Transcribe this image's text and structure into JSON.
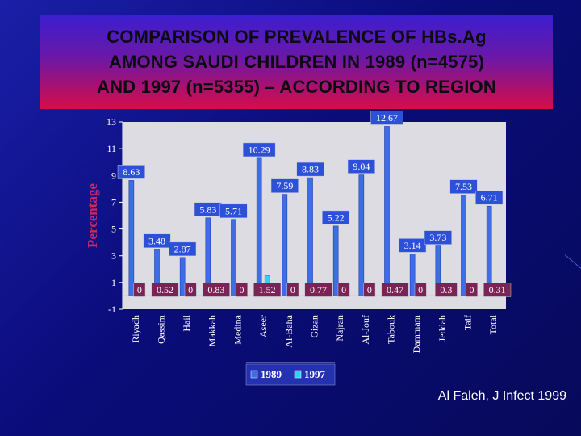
{
  "title_lines": [
    "COMPARISON OF PREVALENCE OF HBs.Ag",
    "AMONG SAUDI CHILDREN IN 1989 (n=4575)",
    "AND 1997 (n=5355) – ACCORDING TO REGION"
  ],
  "citation": "Al Faleh, J Infect 1999",
  "chart_data": {
    "type": "bar",
    "ylabel": "Percentage",
    "xlabel": "",
    "ylim": [
      -1,
      13
    ],
    "yticks": [
      -1,
      1,
      3,
      5,
      7,
      9,
      11,
      13
    ],
    "grid": false,
    "legend_position": "bottom-center",
    "categories": [
      "Riyadh",
      "Qassim",
      "Hail",
      "Makkah",
      "Medina",
      "Aseer",
      "Al-Baha",
      "Gizan",
      "Najran",
      "Al-Jouf",
      "Tabouk",
      "Dammam",
      "Jeddah",
      "Taif",
      "Total"
    ],
    "series": [
      {
        "name": "1989",
        "color": "#3e6ee6",
        "values": [
          8.63,
          3.48,
          2.87,
          5.83,
          5.71,
          10.29,
          7.59,
          8.83,
          5.22,
          9.04,
          12.67,
          3.14,
          3.73,
          7.53,
          6.71
        ],
        "labels": [
          "8.63",
          "3.48",
          "2.87",
          "5.83",
          "5.71",
          "10.29",
          "7.59",
          "8.83",
          "5.22",
          "9.04",
          "12.67",
          "3.14",
          "3.73",
          "7.53",
          "6.71"
        ]
      },
      {
        "name": "1997",
        "color": "#24d7f2",
        "values": [
          0,
          0.52,
          0,
          0.83,
          0,
          1.52,
          0,
          0.77,
          0,
          0,
          0.47,
          0,
          0.3,
          0,
          0.31
        ],
        "labels": [
          "0",
          "0.52",
          "0",
          "0.83",
          "0",
          "1.52",
          "0",
          "0.77",
          "0",
          "0",
          "0.47",
          "0",
          "0.3",
          "0",
          "0.31"
        ]
      }
    ]
  }
}
